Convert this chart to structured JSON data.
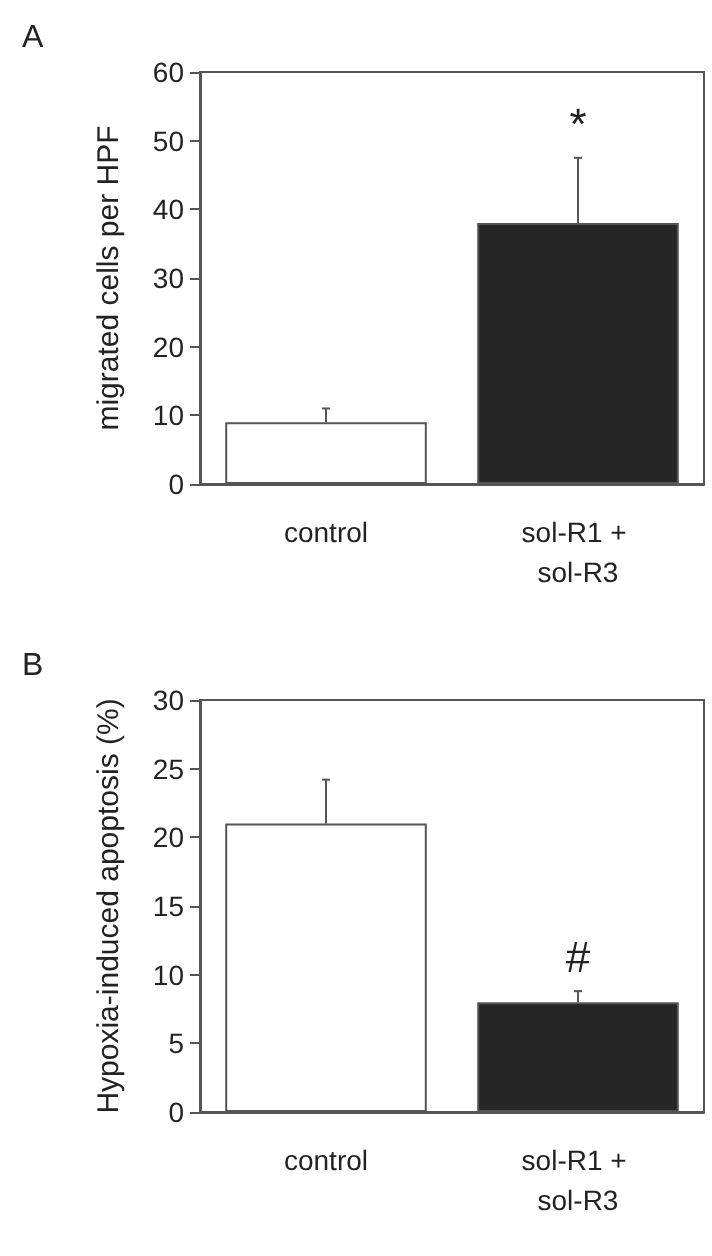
{
  "chart_data": [
    {
      "type": "bar",
      "title": "A",
      "ylabel": "migrated cells per HPF",
      "categories": [
        "control",
        "sol-R1 + sol-R3"
      ],
      "values": [
        9,
        38
      ],
      "colors": [
        "#ffffff",
        "#262626"
      ],
      "errors": [
        [
          9,
          11
        ],
        [
          38,
          47.5
        ]
      ],
      "ylim": [
        0,
        60
      ],
      "yticks": [
        0,
        10,
        20,
        30,
        40,
        50,
        60
      ],
      "grid": false,
      "annotations": [
        "*"
      ]
    },
    {
      "type": "bar",
      "title": "B",
      "ylabel": "Hypoxia-induced apoptosis (%)",
      "categories": [
        "control",
        "sol-R1 + sol-R3"
      ],
      "values": [
        21,
        8
      ],
      "colors": [
        "#ffffff",
        "#262626"
      ],
      "errors": [
        [
          21,
          24.2
        ],
        [
          8,
          8.8
        ]
      ],
      "ylim": [
        0,
        30
      ],
      "yticks": [
        0,
        5,
        10,
        15,
        20,
        25,
        30
      ],
      "grid": false,
      "annotations": [
        "#"
      ]
    }
  ]
}
